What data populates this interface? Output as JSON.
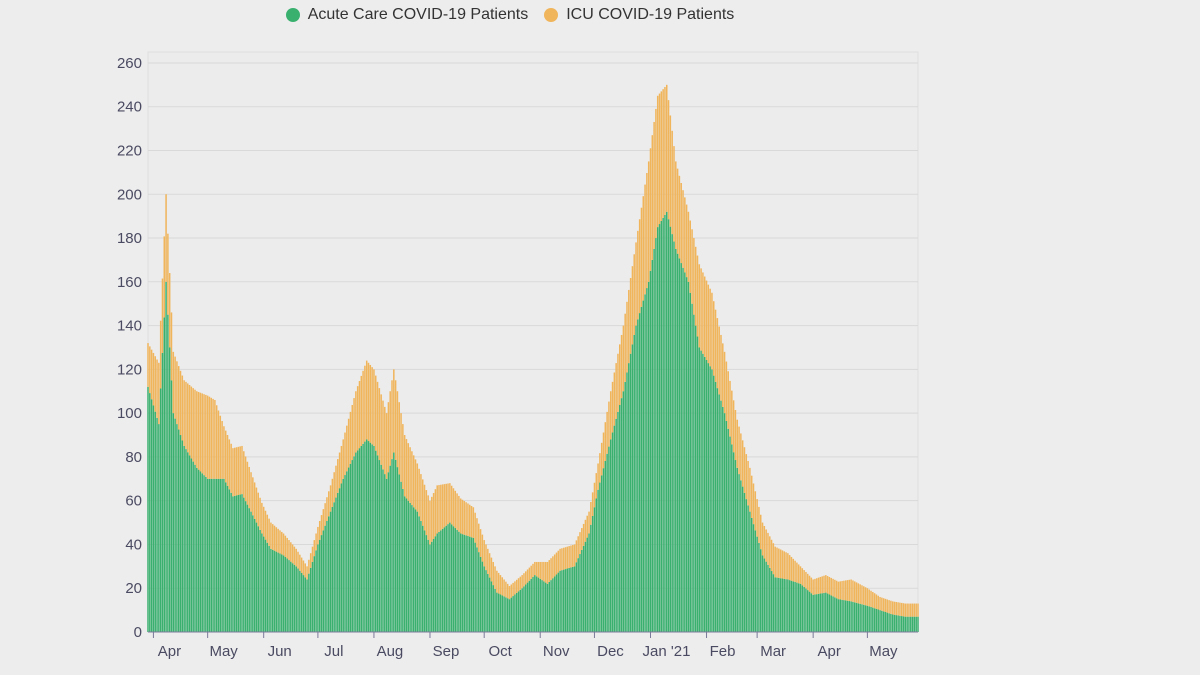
{
  "colors": {
    "acute": "#3ab06f",
    "icu": "#f0b45a",
    "background": "#ededed"
  },
  "legend": [
    {
      "label": "Acute Care COVID-19 Patients",
      "color": "#3ab06f"
    },
    {
      "label": "ICU COVID-19 Patients",
      "color": "#f0b45a"
    }
  ],
  "chart_data": {
    "type": "bar",
    "stacked": true,
    "title": "",
    "xlabel": "",
    "ylabel": "",
    "ylim": [
      0,
      265
    ],
    "yticks": [
      0,
      20,
      40,
      60,
      80,
      100,
      120,
      140,
      160,
      180,
      200,
      220,
      240,
      260
    ],
    "x_start": "2020-03-29",
    "x_end": "2021-05-29",
    "xticks": [
      {
        "date": "2020-04-01",
        "label": "Apr"
      },
      {
        "date": "2020-05-01",
        "label": "May"
      },
      {
        "date": "2020-06-01",
        "label": "Jun"
      },
      {
        "date": "2020-07-01",
        "label": "Jul"
      },
      {
        "date": "2020-08-01",
        "label": "Aug"
      },
      {
        "date": "2020-09-01",
        "label": "Sep"
      },
      {
        "date": "2020-10-01",
        "label": "Oct"
      },
      {
        "date": "2020-11-01",
        "label": "Nov"
      },
      {
        "date": "2020-12-01",
        "label": "Dec"
      },
      {
        "date": "2021-01-01",
        "label": "Jan '21"
      },
      {
        "date": "2021-02-01",
        "label": "Feb"
      },
      {
        "date": "2021-03-01",
        "label": "Mar"
      },
      {
        "date": "2021-04-01",
        "label": "Apr"
      },
      {
        "date": "2021-05-01",
        "label": "May"
      }
    ],
    "grid": true,
    "legend_position": "top",
    "series": [
      {
        "name": "Acute Care COVID-19 Patients",
        "color": "#3ab06f",
        "points": [
          [
            "2020-03-29",
            112
          ],
          [
            "2020-04-04",
            95
          ],
          [
            "2020-04-08",
            160
          ],
          [
            "2020-04-12",
            100
          ],
          [
            "2020-04-18",
            85
          ],
          [
            "2020-04-25",
            75
          ],
          [
            "2020-05-01",
            70
          ],
          [
            "2020-05-05",
            70
          ],
          [
            "2020-05-10",
            70
          ],
          [
            "2020-05-15",
            62
          ],
          [
            "2020-05-20",
            63
          ],
          [
            "2020-05-25",
            55
          ],
          [
            "2020-05-31",
            45
          ],
          [
            "2020-06-05",
            38
          ],
          [
            "2020-06-12",
            35
          ],
          [
            "2020-06-19",
            30
          ],
          [
            "2020-06-25",
            24
          ],
          [
            "2020-07-01",
            40
          ],
          [
            "2020-07-08",
            55
          ],
          [
            "2020-07-15",
            70
          ],
          [
            "2020-07-22",
            82
          ],
          [
            "2020-07-28",
            88
          ],
          [
            "2020-08-01",
            85
          ],
          [
            "2020-08-08",
            70
          ],
          [
            "2020-08-12",
            82
          ],
          [
            "2020-08-18",
            62
          ],
          [
            "2020-08-25",
            55
          ],
          [
            "2020-09-01",
            40
          ],
          [
            "2020-09-05",
            45
          ],
          [
            "2020-09-12",
            50
          ],
          [
            "2020-09-18",
            45
          ],
          [
            "2020-09-25",
            43
          ],
          [
            "2020-10-01",
            30
          ],
          [
            "2020-10-08",
            18
          ],
          [
            "2020-10-15",
            15
          ],
          [
            "2020-10-22",
            20
          ],
          [
            "2020-10-29",
            26
          ],
          [
            "2020-11-05",
            22
          ],
          [
            "2020-11-12",
            28
          ],
          [
            "2020-11-20",
            30
          ],
          [
            "2020-11-28",
            45
          ],
          [
            "2020-12-03",
            65
          ],
          [
            "2020-12-10",
            88
          ],
          [
            "2020-12-17",
            110
          ],
          [
            "2020-12-24",
            140
          ],
          [
            "2020-12-31",
            160
          ],
          [
            "2021-01-05",
            185
          ],
          [
            "2021-01-10",
            192
          ],
          [
            "2021-01-15",
            175
          ],
          [
            "2021-01-22",
            160
          ],
          [
            "2021-01-28",
            130
          ],
          [
            "2021-02-04",
            120
          ],
          [
            "2021-02-11",
            100
          ],
          [
            "2021-02-18",
            75
          ],
          [
            "2021-02-25",
            55
          ],
          [
            "2021-03-04",
            35
          ],
          [
            "2021-03-11",
            25
          ],
          [
            "2021-03-18",
            24
          ],
          [
            "2021-03-25",
            22
          ],
          [
            "2021-04-01",
            17
          ],
          [
            "2021-04-08",
            18
          ],
          [
            "2021-04-15",
            15
          ],
          [
            "2021-04-22",
            14
          ],
          [
            "2021-05-01",
            12
          ],
          [
            "2021-05-08",
            10
          ],
          [
            "2021-05-15",
            8
          ],
          [
            "2021-05-22",
            7
          ],
          [
            "2021-05-28",
            7
          ]
        ]
      },
      {
        "name": "ICU COVID-19 Patients",
        "color": "#f0b45a",
        "points": [
          [
            "2020-03-29",
            20
          ],
          [
            "2020-04-04",
            28
          ],
          [
            "2020-04-08",
            40
          ],
          [
            "2020-04-12",
            28
          ],
          [
            "2020-04-18",
            30
          ],
          [
            "2020-04-25",
            35
          ],
          [
            "2020-05-01",
            38
          ],
          [
            "2020-05-05",
            36
          ],
          [
            "2020-05-10",
            24
          ],
          [
            "2020-05-15",
            22
          ],
          [
            "2020-05-20",
            22
          ],
          [
            "2020-05-25",
            18
          ],
          [
            "2020-05-31",
            14
          ],
          [
            "2020-06-05",
            12
          ],
          [
            "2020-06-12",
            10
          ],
          [
            "2020-06-19",
            8
          ],
          [
            "2020-06-25",
            6
          ],
          [
            "2020-07-01",
            8
          ],
          [
            "2020-07-08",
            12
          ],
          [
            "2020-07-15",
            18
          ],
          [
            "2020-07-22",
            28
          ],
          [
            "2020-07-28",
            36
          ],
          [
            "2020-08-01",
            35
          ],
          [
            "2020-08-08",
            30
          ],
          [
            "2020-08-12",
            38
          ],
          [
            "2020-08-18",
            28
          ],
          [
            "2020-08-25",
            22
          ],
          [
            "2020-09-01",
            20
          ],
          [
            "2020-09-05",
            22
          ],
          [
            "2020-09-12",
            18
          ],
          [
            "2020-09-18",
            16
          ],
          [
            "2020-09-25",
            14
          ],
          [
            "2020-10-01",
            12
          ],
          [
            "2020-10-08",
            10
          ],
          [
            "2020-10-15",
            6
          ],
          [
            "2020-10-22",
            6
          ],
          [
            "2020-10-29",
            6
          ],
          [
            "2020-11-05",
            10
          ],
          [
            "2020-11-12",
            10
          ],
          [
            "2020-11-20",
            10
          ],
          [
            "2020-11-28",
            10
          ],
          [
            "2020-12-03",
            12
          ],
          [
            "2020-12-10",
            22
          ],
          [
            "2020-12-17",
            30
          ],
          [
            "2020-12-24",
            38
          ],
          [
            "2020-12-31",
            55
          ],
          [
            "2021-01-05",
            60
          ],
          [
            "2021-01-10",
            58
          ],
          [
            "2021-01-15",
            40
          ],
          [
            "2021-01-22",
            32
          ],
          [
            "2021-01-28",
            38
          ],
          [
            "2021-02-04",
            35
          ],
          [
            "2021-02-11",
            28
          ],
          [
            "2021-02-18",
            22
          ],
          [
            "2021-02-25",
            20
          ],
          [
            "2021-03-04",
            15
          ],
          [
            "2021-03-11",
            14
          ],
          [
            "2021-03-18",
            12
          ],
          [
            "2021-03-25",
            8
          ],
          [
            "2021-04-01",
            7
          ],
          [
            "2021-04-08",
            8
          ],
          [
            "2021-04-15",
            8
          ],
          [
            "2021-04-22",
            10
          ],
          [
            "2021-05-01",
            8
          ],
          [
            "2021-05-08",
            6
          ],
          [
            "2021-05-15",
            6
          ],
          [
            "2021-05-22",
            6
          ],
          [
            "2021-05-28",
            6
          ]
        ]
      }
    ]
  }
}
